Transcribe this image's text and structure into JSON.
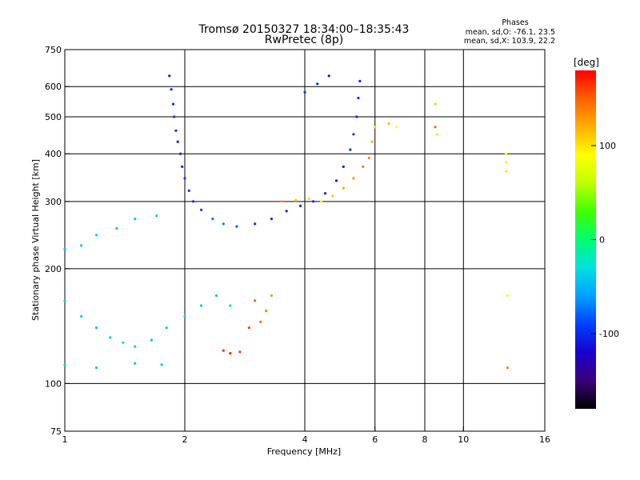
{
  "chart_data": {
    "type": "scatter",
    "title": "Tromsø 20150327 18:34:00–18:35:43",
    "subtitle": "RwPretec (8p)",
    "stats": {
      "heading": "Phases",
      "line_o": "mean, sd,O: -76.1, 23.5",
      "line_x": "mean, sd,X: 103.9, 22.2"
    },
    "xlabel": "Frequency [MHz]",
    "ylabel": "Stationary phase Virtual Height [km]",
    "x_scale": "log",
    "y_scale": "log",
    "xlim": [
      1,
      16
    ],
    "ylim": [
      75,
      750
    ],
    "x_ticks": [
      1,
      2,
      4,
      6,
      8,
      10,
      16
    ],
    "y_ticks": [
      75,
      100,
      200,
      300,
      400,
      500,
      600,
      750
    ],
    "x_gridlines": [
      2,
      4,
      6,
      8,
      10
    ],
    "y_gridlines": [
      100,
      200,
      300,
      400,
      500,
      600
    ],
    "grid": true,
    "colorbar": {
      "label": "[deg]",
      "range": [
        -180,
        180
      ],
      "ticks": [
        100,
        0,
        -100
      ],
      "colors": [
        "#000000",
        "#3a007a",
        "#1a00d0",
        "#0040ff",
        "#00a0ff",
        "#00e0e0",
        "#00ff70",
        "#40ff00",
        "#c0ff00",
        "#ffff00",
        "#ffb000",
        "#ff6000",
        "#ff0000"
      ]
    },
    "series": [
      {
        "values": [
          {
            "f": 1.83,
            "h": 640,
            "p": -110
          },
          {
            "f": 1.85,
            "h": 590,
            "p": -105
          },
          {
            "f": 1.87,
            "h": 540,
            "p": -100
          },
          {
            "f": 1.88,
            "h": 500,
            "p": -95
          },
          {
            "f": 1.9,
            "h": 460,
            "p": -100
          },
          {
            "f": 1.92,
            "h": 430,
            "p": -110
          },
          {
            "f": 1.95,
            "h": 400,
            "p": -105
          },
          {
            "f": 1.97,
            "h": 370,
            "p": -100
          },
          {
            "f": 2.0,
            "h": 345,
            "p": -95
          },
          {
            "f": 2.05,
            "h": 320,
            "p": -95
          },
          {
            "f": 2.1,
            "h": 300,
            "p": -100
          },
          {
            "f": 2.2,
            "h": 285,
            "p": -90
          },
          {
            "f": 2.35,
            "h": 270,
            "p": -75
          },
          {
            "f": 2.5,
            "h": 262,
            "p": -70
          },
          {
            "f": 2.7,
            "h": 258,
            "p": -80
          },
          {
            "f": 3.0,
            "h": 262,
            "p": -95
          },
          {
            "f": 3.3,
            "h": 270,
            "p": -100
          },
          {
            "f": 3.6,
            "h": 283,
            "p": -105
          },
          {
            "f": 3.9,
            "h": 292,
            "p": -100
          },
          {
            "f": 4.2,
            "h": 300,
            "p": -100
          },
          {
            "f": 4.5,
            "h": 315,
            "p": -105
          },
          {
            "f": 4.8,
            "h": 340,
            "p": -110
          },
          {
            "f": 5.0,
            "h": 370,
            "p": -105
          },
          {
            "f": 5.2,
            "h": 410,
            "p": -100
          },
          {
            "f": 5.3,
            "h": 450,
            "p": -95
          },
          {
            "f": 5.4,
            "h": 500,
            "p": -100
          },
          {
            "f": 5.45,
            "h": 560,
            "p": -105
          },
          {
            "f": 5.5,
            "h": 620,
            "p": -100
          },
          {
            "f": 4.6,
            "h": 640,
            "p": -110
          },
          {
            "f": 4.3,
            "h": 610,
            "p": -105
          },
          {
            "f": 4.0,
            "h": 580,
            "p": -95
          }
        ]
      },
      {
        "values": [
          {
            "f": 3.5,
            "h": 300,
            "p": 130
          },
          {
            "f": 3.8,
            "h": 302,
            "p": 110
          },
          {
            "f": 4.1,
            "h": 305,
            "p": 100
          },
          {
            "f": 4.4,
            "h": 300,
            "p": 95
          },
          {
            "f": 4.7,
            "h": 310,
            "p": 110
          },
          {
            "f": 5.0,
            "h": 325,
            "p": 125
          },
          {
            "f": 5.3,
            "h": 345,
            "p": 130
          },
          {
            "f": 5.6,
            "h": 370,
            "p": 140
          },
          {
            "f": 5.8,
            "h": 390,
            "p": 135
          },
          {
            "f": 5.9,
            "h": 430,
            "p": 120
          },
          {
            "f": 6.0,
            "h": 470,
            "p": 105
          },
          {
            "f": 6.5,
            "h": 480,
            "p": 115
          },
          {
            "f": 6.8,
            "h": 470,
            "p": 90
          },
          {
            "f": 3.0,
            "h": 165,
            "p": 150
          },
          {
            "f": 3.2,
            "h": 155,
            "p": 140
          },
          {
            "f": 3.1,
            "h": 145,
            "p": 145
          },
          {
            "f": 2.9,
            "h": 140,
            "p": 160
          },
          {
            "f": 3.3,
            "h": 170,
            "p": 130
          },
          {
            "f": 2.5,
            "h": 122,
            "p": 165
          },
          {
            "f": 2.6,
            "h": 120,
            "p": 170
          },
          {
            "f": 2.75,
            "h": 121,
            "p": 160
          },
          {
            "f": 12.8,
            "h": 380,
            "p": 95
          },
          {
            "f": 12.8,
            "h": 360,
            "p": 100
          },
          {
            "f": 12.8,
            "h": 400,
            "p": 90
          },
          {
            "f": 12.9,
            "h": 170,
            "p": 95
          },
          {
            "f": 12.9,
            "h": 110,
            "p": 140
          },
          {
            "f": 8.5,
            "h": 540,
            "p": 110
          },
          {
            "f": 8.5,
            "h": 470,
            "p": 150
          },
          {
            "f": 8.6,
            "h": 450,
            "p": 100
          }
        ]
      },
      {
        "values": [
          {
            "f": 1.0,
            "h": 225,
            "p": -45
          },
          {
            "f": 1.1,
            "h": 230,
            "p": -40
          },
          {
            "f": 1.2,
            "h": 245,
            "p": -35
          },
          {
            "f": 1.35,
            "h": 255,
            "p": -45
          },
          {
            "f": 1.5,
            "h": 270,
            "p": -40
          },
          {
            "f": 1.7,
            "h": 275,
            "p": -40
          },
          {
            "f": 1.0,
            "h": 165,
            "p": -40
          },
          {
            "f": 1.1,
            "h": 150,
            "p": -35
          },
          {
            "f": 1.2,
            "h": 140,
            "p": -45
          },
          {
            "f": 1.3,
            "h": 132,
            "p": -40
          },
          {
            "f": 1.4,
            "h": 128,
            "p": -30
          },
          {
            "f": 1.5,
            "h": 125,
            "p": -40
          },
          {
            "f": 1.65,
            "h": 130,
            "p": -45
          },
          {
            "f": 1.8,
            "h": 140,
            "p": -40
          },
          {
            "f": 2.0,
            "h": 150,
            "p": -35
          },
          {
            "f": 2.2,
            "h": 160,
            "p": -40
          },
          {
            "f": 2.4,
            "h": 170,
            "p": -45
          },
          {
            "f": 2.6,
            "h": 160,
            "p": -35
          },
          {
            "f": 1.0,
            "h": 112,
            "p": -40
          },
          {
            "f": 1.2,
            "h": 110,
            "p": -45
          },
          {
            "f": 1.5,
            "h": 113,
            "p": -40
          },
          {
            "f": 1.75,
            "h": 112,
            "p": -45
          }
        ]
      }
    ]
  }
}
